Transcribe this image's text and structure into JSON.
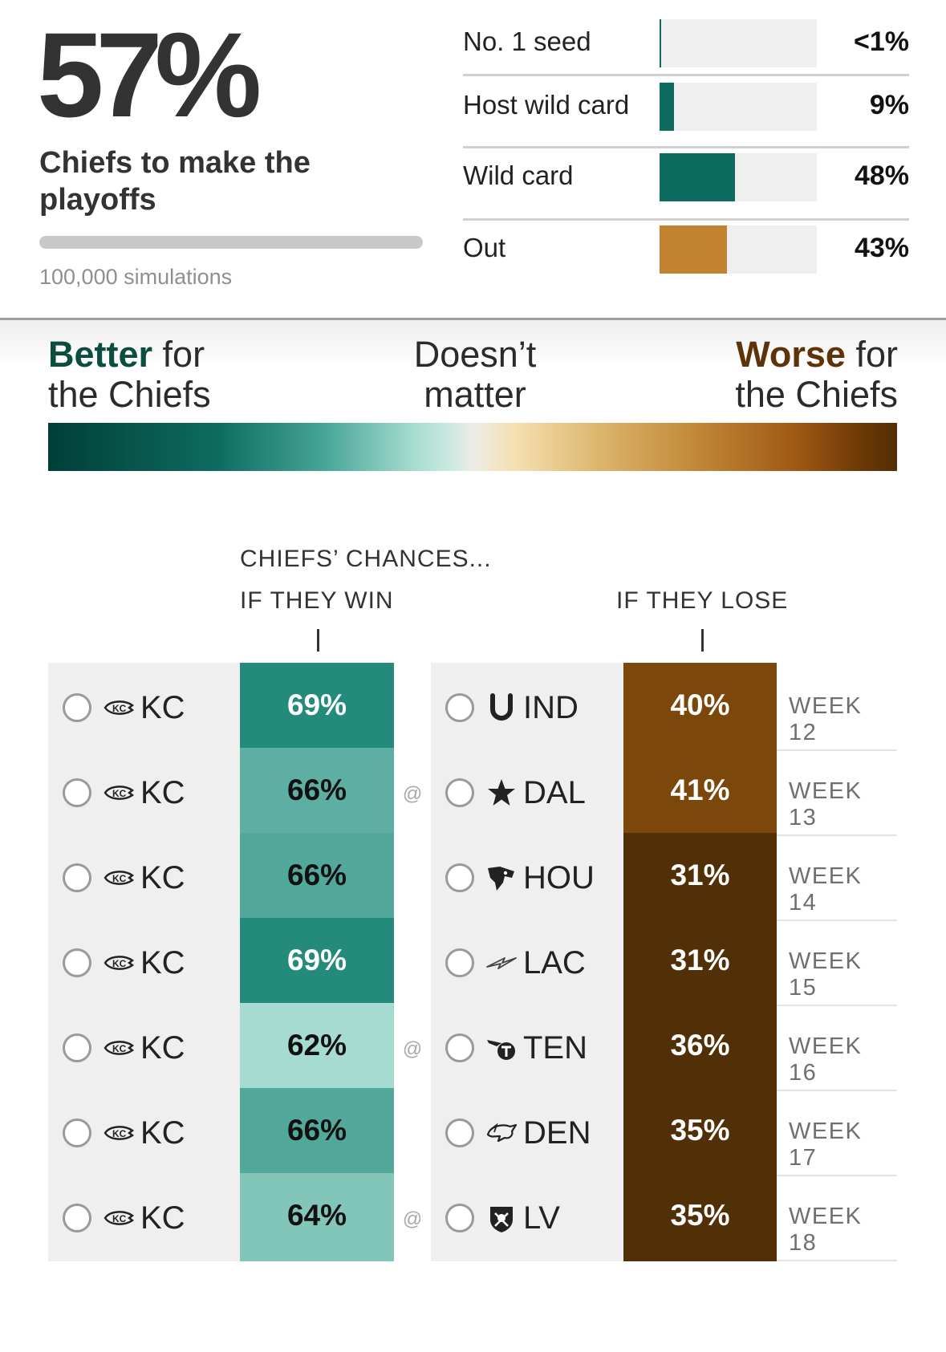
{
  "summary": {
    "headline_pct": "57%",
    "headline_label": "Chiefs to make the playoffs",
    "simulations": "100,000 simulations"
  },
  "outcomes": [
    {
      "label": "No. 1 seed",
      "value": "<1%",
      "fraction": 0.005,
      "color": "#0e6b60"
    },
    {
      "label": "Host wild card",
      "value": "9%",
      "fraction": 0.09,
      "color": "#0e6b60"
    },
    {
      "label": "Wild card",
      "value": "48%",
      "fraction": 0.48,
      "color": "#0e6b60"
    },
    {
      "label": "Out",
      "value": "43%",
      "fraction": 0.43,
      "color": "#c1832f"
    }
  ],
  "legend": {
    "better_strong": "Better",
    "better_rest": " for",
    "better_line2": "the Chiefs",
    "neutral_line1": "Doesn’t",
    "neutral_line2": "matter",
    "worse_strong": "Worse",
    "worse_rest": " for",
    "worse_line2": "the Chiefs"
  },
  "table_header": {
    "title": "CHIEFS’ CHANCES...",
    "if_win": "IF THEY WIN",
    "if_lose": "IF THEY LOSE"
  },
  "games": [
    {
      "team": "KC",
      "team_icon": "chiefs-logo-icon",
      "win_pct": "69%",
      "win_color": "#248a7c",
      "win_text": "#ffffff",
      "at": "",
      "opponent": "IND",
      "opponent_icon": "colts-horseshoe-icon",
      "lose_pct": "40%",
      "lose_color": "#7b470b",
      "week": "WEEK 12"
    },
    {
      "team": "KC",
      "team_icon": "chiefs-logo-icon",
      "win_pct": "66%",
      "win_color": "#5dafa3",
      "win_text": "#111111",
      "at": "@",
      "opponent": "DAL",
      "opponent_icon": "cowboys-star-icon",
      "lose_pct": "41%",
      "lose_color": "#7b470b",
      "week": "WEEK 13"
    },
    {
      "team": "KC",
      "team_icon": "chiefs-logo-icon",
      "win_pct": "66%",
      "win_color": "#52a89b",
      "win_text": "#111111",
      "at": "",
      "opponent": "HOU",
      "opponent_icon": "texans-bull-icon",
      "lose_pct": "31%",
      "lose_color": "#523007",
      "week": "WEEK 14"
    },
    {
      "team": "KC",
      "team_icon": "chiefs-logo-icon",
      "win_pct": "69%",
      "win_color": "#248a7c",
      "win_text": "#ffffff",
      "at": "",
      "opponent": "LAC",
      "opponent_icon": "chargers-bolt-icon",
      "lose_pct": "31%",
      "lose_color": "#523007",
      "week": "WEEK 15"
    },
    {
      "team": "KC",
      "team_icon": "chiefs-logo-icon",
      "win_pct": "62%",
      "win_color": "#a6dbd1",
      "win_text": "#111111",
      "at": "@",
      "opponent": "TEN",
      "opponent_icon": "titans-logo-icon",
      "lose_pct": "36%",
      "lose_color": "#523007",
      "week": "WEEK 16"
    },
    {
      "team": "KC",
      "team_icon": "chiefs-logo-icon",
      "win_pct": "66%",
      "win_color": "#52a89b",
      "win_text": "#111111",
      "at": "",
      "opponent": "DEN",
      "opponent_icon": "broncos-horse-icon",
      "lose_pct": "35%",
      "lose_color": "#523007",
      "week": "WEEK 17"
    },
    {
      "team": "KC",
      "team_icon": "chiefs-logo-icon",
      "win_pct": "64%",
      "win_color": "#82c5b9",
      "win_text": "#111111",
      "at": "@",
      "opponent": "LV",
      "opponent_icon": "raiders-shield-icon",
      "lose_pct": "35%",
      "lose_color": "#523007",
      "week": "WEEK 18"
    }
  ]
}
